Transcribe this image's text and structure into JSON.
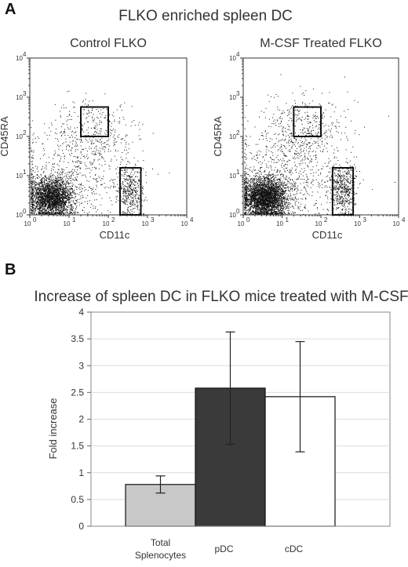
{
  "panel_a": {
    "label": "A",
    "title": "FLKO enriched spleen DC",
    "xlabel": "CD11c",
    "ylabel": "CD45RA",
    "tick_labels": [
      "10",
      "10",
      "10",
      "10",
      "10"
    ],
    "tick_exponents": [
      "0",
      "1",
      "2",
      "3",
      "4"
    ],
    "plots": [
      {
        "title": "Control FLKO",
        "gates": [
          {
            "x": [
              1.3,
              2.0
            ],
            "y": [
              2.0,
              2.75
            ]
          },
          {
            "x": [
              2.3,
              2.83
            ],
            "y": [
              0.0,
              1.2
            ]
          }
        ]
      },
      {
        "title": "M-CSF Treated FLKO",
        "gates": [
          {
            "x": [
              1.3,
              2.0
            ],
            "y": [
              2.0,
              2.75
            ]
          },
          {
            "x": [
              2.3,
              2.83
            ],
            "y": [
              0.0,
              1.2
            ]
          }
        ]
      }
    ]
  },
  "panel_b": {
    "label": "B"
  },
  "chart_data": {
    "type": "bar",
    "title": "Increase of spleen DC in FLKO mice treated with M-CSF",
    "xlabel": "",
    "ylabel": "Fold increase",
    "categories": [
      "Total Splenocytes",
      "pDC",
      "cDC"
    ],
    "category_lines": [
      [
        "Total",
        "Splenocytes"
      ],
      [
        "pDC"
      ],
      [
        "cDC"
      ]
    ],
    "values": [
      0.78,
      2.58,
      2.42
    ],
    "errors": [
      0.16,
      1.05,
      1.03
    ],
    "bar_colors": [
      "#c8c8c8",
      "#3a3a3a",
      "#ffffff"
    ],
    "ylim": [
      0,
      4
    ],
    "yticks": [
      "0",
      "0.5",
      "1",
      "1.5",
      "2",
      "2.5",
      "3",
      "3.5",
      "4"
    ],
    "grid": true
  }
}
